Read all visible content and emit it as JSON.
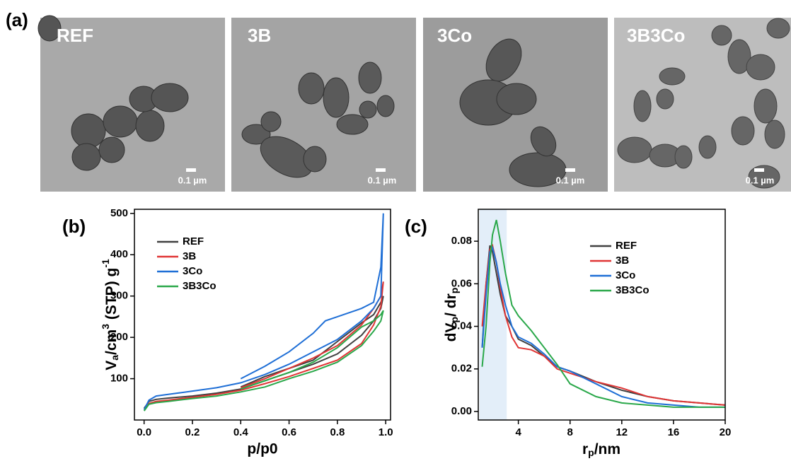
{
  "tem": {
    "label": "(a)",
    "panels": [
      {
        "label": "REF",
        "scale_bar": "0.1 µm"
      },
      {
        "label": "3B",
        "scale_bar": "0.1 µm"
      },
      {
        "label": "3Co",
        "scale_bar": "0.1 µm"
      },
      {
        "label": "3B3Co",
        "scale_bar": "0.1 µm"
      }
    ]
  },
  "chart_data": [
    {
      "type": "line",
      "label": "(b)",
      "xlabel": "p/p0",
      "ylabel": [
        "V",
        "a",
        "/cm",
        "3",
        " (STP) g",
        "-1"
      ],
      "xlim": [
        -0.04,
        1.02
      ],
      "ylim": [
        0,
        510
      ],
      "xticks": [
        {
          "value": 0,
          "label": "0.0"
        },
        {
          "value": 0.2,
          "label": "0.2"
        },
        {
          "value": 0.4,
          "label": "0.4"
        },
        {
          "value": 0.6,
          "label": "0.6"
        },
        {
          "value": 0.8,
          "label": "0.8"
        },
        {
          "value": 1,
          "label": "1.0"
        }
      ],
      "yticks": [
        100,
        200,
        300,
        400,
        500
      ],
      "legend": "upper left",
      "series": [
        {
          "name": "REF",
          "color": "#404040",
          "x": [
            0,
            0.02,
            0.05,
            0.1,
            0.2,
            0.3,
            0.4,
            0.5,
            0.6,
            0.7,
            0.8,
            0.9,
            0.95,
            0.98,
            0.99,
            0.98,
            0.95,
            0.9,
            0.8,
            0.7,
            0.6,
            0.5,
            0.4
          ],
          "values": [
            28,
            45,
            50,
            53,
            58,
            65,
            75,
            95,
            115,
            135,
            160,
            205,
            240,
            270,
            300,
            285,
            255,
            235,
            190,
            145,
            125,
            105,
            80
          ]
        },
        {
          "name": "3B",
          "color": "#e03535",
          "x": [
            0,
            0.02,
            0.05,
            0.1,
            0.2,
            0.3,
            0.4,
            0.5,
            0.6,
            0.7,
            0.8,
            0.9,
            0.95,
            0.98,
            0.99,
            0.98,
            0.95,
            0.9,
            0.8,
            0.7,
            0.6,
            0.5,
            0.4
          ],
          "values": [
            25,
            40,
            45,
            48,
            55,
            62,
            72,
            88,
            105,
            125,
            145,
            185,
            230,
            275,
            335,
            300,
            270,
            230,
            180,
            150,
            125,
            100,
            78
          ]
        },
        {
          "name": "3Co",
          "color": "#1f6fd6",
          "x": [
            0,
            0.02,
            0.05,
            0.1,
            0.2,
            0.3,
            0.4,
            0.5,
            0.6,
            0.7,
            0.8,
            0.9,
            0.95,
            0.98,
            0.99,
            0.98,
            0.95,
            0.9,
            0.8,
            0.75,
            0.7,
            0.6,
            0.5,
            0.4
          ],
          "values": [
            25,
            48,
            58,
            62,
            70,
            78,
            90,
            110,
            135,
            165,
            195,
            240,
            270,
            300,
            500,
            370,
            285,
            270,
            250,
            240,
            210,
            165,
            130,
            100
          ]
        },
        {
          "name": "3B3Co",
          "color": "#2aa84a",
          "x": [
            0,
            0.02,
            0.05,
            0.1,
            0.2,
            0.3,
            0.4,
            0.5,
            0.6,
            0.7,
            0.8,
            0.9,
            0.95,
            0.98,
            0.99,
            0.98,
            0.95,
            0.9,
            0.8,
            0.7,
            0.6,
            0.5,
            0.4
          ],
          "values": [
            22,
            38,
            42,
            45,
            52,
            58,
            68,
            80,
            100,
            118,
            140,
            180,
            215,
            240,
            265,
            255,
            240,
            225,
            175,
            140,
            115,
            95,
            75
          ]
        }
      ]
    },
    {
      "type": "line",
      "label": "(c)",
      "xlabel": [
        "r",
        "p",
        "/nm"
      ],
      "ylabel": [
        "dV",
        "p",
        "/ dr",
        "p"
      ],
      "xlim": [
        0.9,
        20
      ],
      "ylim": [
        -0.004,
        0.095
      ],
      "shaded_x": [
        1,
        3.1
      ],
      "xticks": [
        4,
        8,
        12,
        16,
        20
      ],
      "yticks": [
        {
          "value": 0,
          "label": "0.00"
        },
        {
          "value": 0.02,
          "label": "0.02"
        },
        {
          "value": 0.04,
          "label": "0.04"
        },
        {
          "value": 0.06,
          "label": "0.06"
        },
        {
          "value": 0.08,
          "label": "0.08"
        }
      ],
      "legend": "upper right",
      "series": [
        {
          "name": "REF",
          "color": "#404040",
          "x": [
            1.2,
            1.5,
            1.8,
            2,
            2.3,
            2.6,
            3,
            3.5,
            4,
            5,
            6,
            7,
            8,
            10,
            12,
            14,
            16,
            18,
            20
          ],
          "values": [
            0.03,
            0.06,
            0.078,
            0.075,
            0.065,
            0.055,
            0.045,
            0.04,
            0.034,
            0.031,
            0.026,
            0.021,
            0.019,
            0.014,
            0.01,
            0.007,
            0.005,
            0.004,
            0.003
          ]
        },
        {
          "name": "3B",
          "color": "#e03535",
          "x": [
            1.2,
            1.5,
            1.8,
            2,
            2.3,
            2.6,
            3,
            3.5,
            4,
            5,
            6,
            7,
            8,
            10,
            12,
            14,
            16,
            18,
            20
          ],
          "values": [
            0.04,
            0.06,
            0.076,
            0.078,
            0.07,
            0.058,
            0.045,
            0.035,
            0.03,
            0.029,
            0.026,
            0.02,
            0.018,
            0.014,
            0.011,
            0.007,
            0.005,
            0.004,
            0.003
          ]
        },
        {
          "name": "3Co",
          "color": "#1f6fd6",
          "x": [
            1.2,
            1.5,
            1.8,
            2,
            2.3,
            2.6,
            3,
            3.5,
            4,
            5,
            6,
            7,
            8,
            10,
            12,
            14,
            16,
            18,
            20
          ],
          "values": [
            0.03,
            0.055,
            0.075,
            0.077,
            0.07,
            0.06,
            0.05,
            0.04,
            0.035,
            0.032,
            0.027,
            0.021,
            0.019,
            0.013,
            0.007,
            0.004,
            0.003,
            0.002,
            0.002
          ]
        },
        {
          "name": "3B3Co",
          "color": "#2aa84a",
          "x": [
            1.2,
            1.5,
            1.8,
            2,
            2.3,
            2.6,
            3,
            3.5,
            4,
            5,
            6,
            7,
            8,
            10,
            12,
            14,
            16,
            18,
            20
          ],
          "values": [
            0.021,
            0.04,
            0.07,
            0.083,
            0.09,
            0.08,
            0.065,
            0.05,
            0.045,
            0.038,
            0.03,
            0.022,
            0.013,
            0.007,
            0.004,
            0.003,
            0.002,
            0.002,
            0.002
          ]
        }
      ]
    }
  ]
}
